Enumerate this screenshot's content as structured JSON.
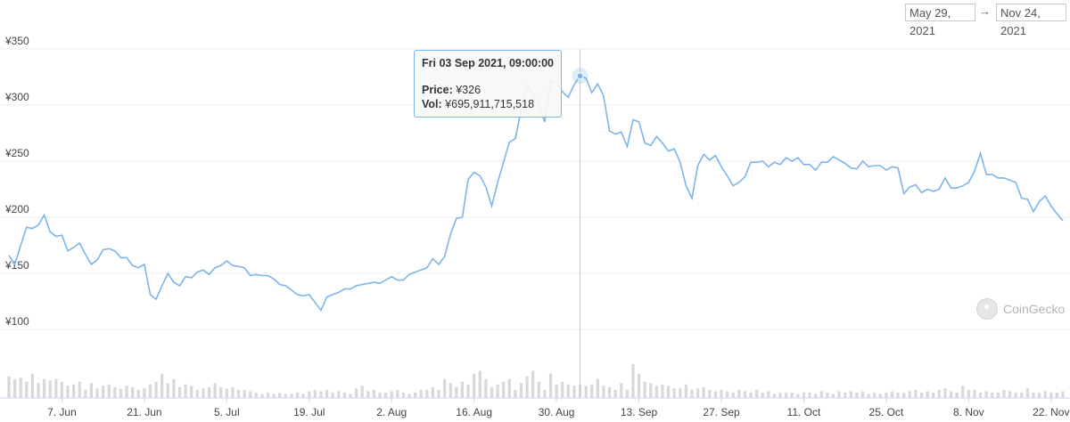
{
  "range": {
    "from": "May 29, 2021",
    "arrow": "→",
    "to": "Nov 24, 2021"
  },
  "tooltip": {
    "date": "Fri 03 Sep 2021, 09:00:00",
    "price_label": "Price:",
    "price_value": "¥326",
    "vol_label": "Vol:",
    "vol_value": "¥695,911,715,518"
  },
  "watermark": "CoinGecko",
  "colors": {
    "line": "#7cb5ec",
    "volume": "#d8d8d8",
    "grid": "#ececec",
    "crosshair": "#cccccc"
  },
  "chart_data": {
    "type": "line",
    "title": "",
    "xlabel": "",
    "ylabel": "",
    "x_range": [
      "2021-05-29",
      "2021-11-24"
    ],
    "ylim": [
      100,
      350
    ],
    "y_ticks": [
      {
        "value": 350,
        "label": "¥350"
      },
      {
        "value": 300,
        "label": "¥300"
      },
      {
        "value": 250,
        "label": "¥250"
      },
      {
        "value": 200,
        "label": "¥200"
      },
      {
        "value": 150,
        "label": "¥150"
      },
      {
        "value": 100,
        "label": "¥100"
      }
    ],
    "x_ticks": [
      {
        "date": "2021-06-07",
        "label": "7. Jun"
      },
      {
        "date": "2021-06-21",
        "label": "21. Jun"
      },
      {
        "date": "2021-07-05",
        "label": "5. Jul"
      },
      {
        "date": "2021-07-19",
        "label": "19. Jul"
      },
      {
        "date": "2021-08-02",
        "label": "2. Aug"
      },
      {
        "date": "2021-08-16",
        "label": "16. Aug"
      },
      {
        "date": "2021-08-30",
        "label": "30. Aug"
      },
      {
        "date": "2021-09-13",
        "label": "13. Sep"
      },
      {
        "date": "2021-09-27",
        "label": "27. Sep"
      },
      {
        "date": "2021-10-11",
        "label": "11. Oct"
      },
      {
        "date": "2021-10-25",
        "label": "25. Oct"
      },
      {
        "date": "2021-11-08",
        "label": "8. Nov"
      },
      {
        "date": "2021-11-22",
        "label": "22. Nov"
      }
    ],
    "grid": true,
    "legend": "none",
    "highlight": {
      "date": "2021-09-03",
      "value": 326
    },
    "series": [
      {
        "values": [
          [
            "2021-05-29",
            166
          ],
          [
            "2021-05-30",
            158
          ],
          [
            "2021-05-31",
            175
          ],
          [
            "2021-06-01",
            191
          ],
          [
            "2021-06-02",
            190
          ],
          [
            "2021-06-03",
            193
          ],
          [
            "2021-06-04",
            202
          ],
          [
            "2021-06-05",
            187
          ],
          [
            "2021-06-06",
            183
          ],
          [
            "2021-06-07",
            184
          ],
          [
            "2021-06-08",
            170
          ],
          [
            "2021-06-09",
            173
          ],
          [
            "2021-06-10",
            177
          ],
          [
            "2021-06-11",
            167
          ],
          [
            "2021-06-12",
            158
          ],
          [
            "2021-06-13",
            162
          ],
          [
            "2021-06-14",
            171
          ],
          [
            "2021-06-15",
            172
          ],
          [
            "2021-06-16",
            170
          ],
          [
            "2021-06-17",
            164
          ],
          [
            "2021-06-18",
            164
          ],
          [
            "2021-06-19",
            157
          ],
          [
            "2021-06-20",
            155
          ],
          [
            "2021-06-21",
            158
          ],
          [
            "2021-06-22",
            131
          ],
          [
            "2021-06-23",
            127
          ],
          [
            "2021-06-24",
            139
          ],
          [
            "2021-06-25",
            150
          ],
          [
            "2021-06-26",
            142
          ],
          [
            "2021-06-27",
            139
          ],
          [
            "2021-06-28",
            147
          ],
          [
            "2021-06-29",
            146
          ],
          [
            "2021-06-30",
            151
          ],
          [
            "2021-07-01",
            153
          ],
          [
            "2021-07-02",
            149
          ],
          [
            "2021-07-03",
            155
          ],
          [
            "2021-07-04",
            157
          ],
          [
            "2021-07-05",
            161
          ],
          [
            "2021-07-06",
            157
          ],
          [
            "2021-07-07",
            156
          ],
          [
            "2021-07-08",
            155
          ],
          [
            "2021-07-09",
            148
          ],
          [
            "2021-07-10",
            149
          ],
          [
            "2021-07-11",
            148
          ],
          [
            "2021-07-12",
            148
          ],
          [
            "2021-07-13",
            145
          ],
          [
            "2021-07-14",
            140
          ],
          [
            "2021-07-15",
            139
          ],
          [
            "2021-07-16",
            135
          ],
          [
            "2021-07-17",
            131
          ],
          [
            "2021-07-18",
            130
          ],
          [
            "2021-07-19",
            131
          ],
          [
            "2021-07-20",
            124
          ],
          [
            "2021-07-21",
            117
          ],
          [
            "2021-07-22",
            129
          ],
          [
            "2021-07-23",
            131
          ],
          [
            "2021-07-24",
            133
          ],
          [
            "2021-07-25",
            136
          ],
          [
            "2021-07-26",
            136
          ],
          [
            "2021-07-27",
            139
          ],
          [
            "2021-07-28",
            140
          ],
          [
            "2021-07-29",
            141
          ],
          [
            "2021-07-30",
            142
          ],
          [
            "2021-07-31",
            141
          ],
          [
            "2021-08-01",
            144
          ],
          [
            "2021-08-02",
            147
          ],
          [
            "2021-08-03",
            144
          ],
          [
            "2021-08-04",
            144
          ],
          [
            "2021-08-05",
            149
          ],
          [
            "2021-08-06",
            151
          ],
          [
            "2021-08-07",
            153
          ],
          [
            "2021-08-08",
            155
          ],
          [
            "2021-08-09",
            163
          ],
          [
            "2021-08-10",
            158
          ],
          [
            "2021-08-11",
            165
          ],
          [
            "2021-08-12",
            185
          ],
          [
            "2021-08-13",
            199
          ],
          [
            "2021-08-14",
            200
          ],
          [
            "2021-08-15",
            234
          ],
          [
            "2021-08-16",
            240
          ],
          [
            "2021-08-17",
            237
          ],
          [
            "2021-08-18",
            227
          ],
          [
            "2021-08-19",
            210
          ],
          [
            "2021-08-20",
            231
          ],
          [
            "2021-08-21",
            249
          ],
          [
            "2021-08-22",
            267
          ],
          [
            "2021-08-23",
            270
          ],
          [
            "2021-08-24",
            296
          ],
          [
            "2021-08-25",
            318
          ],
          [
            "2021-08-26",
            310
          ],
          [
            "2021-08-27",
            300
          ],
          [
            "2021-08-28",
            285
          ],
          [
            "2021-08-29",
            322
          ],
          [
            "2021-08-30",
            320
          ],
          [
            "2021-08-31",
            312
          ],
          [
            "2021-09-01",
            307
          ],
          [
            "2021-09-02",
            318
          ],
          [
            "2021-09-03",
            326
          ],
          [
            "2021-09-04",
            324
          ],
          [
            "2021-09-05",
            311
          ],
          [
            "2021-09-06",
            319
          ],
          [
            "2021-09-07",
            308
          ],
          [
            "2021-09-08",
            277
          ],
          [
            "2021-09-09",
            274
          ],
          [
            "2021-09-10",
            276
          ],
          [
            "2021-09-11",
            263
          ],
          [
            "2021-09-12",
            287
          ],
          [
            "2021-09-13",
            285
          ],
          [
            "2021-09-14",
            266
          ],
          [
            "2021-09-15",
            264
          ],
          [
            "2021-09-16",
            272
          ],
          [
            "2021-09-17",
            266
          ],
          [
            "2021-09-18",
            259
          ],
          [
            "2021-09-19",
            261
          ],
          [
            "2021-09-20",
            249
          ],
          [
            "2021-09-21",
            228
          ],
          [
            "2021-09-22",
            217
          ],
          [
            "2021-09-23",
            246
          ],
          [
            "2021-09-24",
            256
          ],
          [
            "2021-09-25",
            251
          ],
          [
            "2021-09-26",
            255
          ],
          [
            "2021-09-27",
            245
          ],
          [
            "2021-09-28",
            237
          ],
          [
            "2021-09-29",
            228
          ],
          [
            "2021-09-30",
            231
          ],
          [
            "2021-10-01",
            236
          ],
          [
            "2021-10-02",
            249
          ],
          [
            "2021-10-03",
            249
          ],
          [
            "2021-10-04",
            250
          ],
          [
            "2021-10-05",
            245
          ],
          [
            "2021-10-06",
            249
          ],
          [
            "2021-10-07",
            247
          ],
          [
            "2021-10-08",
            253
          ],
          [
            "2021-10-09",
            250
          ],
          [
            "2021-10-10",
            253
          ],
          [
            "2021-10-11",
            247
          ],
          [
            "2021-10-12",
            247
          ],
          [
            "2021-10-13",
            242
          ],
          [
            "2021-10-14",
            249
          ],
          [
            "2021-10-15",
            249
          ],
          [
            "2021-10-16",
            254
          ],
          [
            "2021-10-17",
            251
          ],
          [
            "2021-10-18",
            248
          ],
          [
            "2021-10-19",
            244
          ],
          [
            "2021-10-20",
            243
          ],
          [
            "2021-10-21",
            250
          ],
          [
            "2021-10-22",
            245
          ],
          [
            "2021-10-23",
            246
          ],
          [
            "2021-10-24",
            246
          ],
          [
            "2021-10-25",
            242
          ],
          [
            "2021-10-26",
            245
          ],
          [
            "2021-10-27",
            244
          ],
          [
            "2021-10-28",
            221
          ],
          [
            "2021-10-29",
            227
          ],
          [
            "2021-10-30",
            229
          ],
          [
            "2021-10-31",
            222
          ],
          [
            "2021-11-01",
            225
          ],
          [
            "2021-11-02",
            223
          ],
          [
            "2021-11-03",
            225
          ],
          [
            "2021-11-04",
            235
          ],
          [
            "2021-11-05",
            226
          ],
          [
            "2021-11-06",
            226
          ],
          [
            "2021-11-07",
            228
          ],
          [
            "2021-11-08",
            231
          ],
          [
            "2021-11-09",
            241
          ],
          [
            "2021-11-10",
            257
          ],
          [
            "2021-11-11",
            238
          ],
          [
            "2021-11-12",
            238
          ],
          [
            "2021-11-13",
            235
          ],
          [
            "2021-11-14",
            235
          ],
          [
            "2021-11-15",
            233
          ],
          [
            "2021-11-16",
            231
          ],
          [
            "2021-11-17",
            217
          ],
          [
            "2021-11-18",
            216
          ],
          [
            "2021-11-19",
            205
          ],
          [
            "2021-11-20",
            214
          ],
          [
            "2021-11-21",
            219
          ],
          [
            "2021-11-22",
            210
          ],
          [
            "2021-11-23",
            203
          ],
          [
            "2021-11-24",
            197
          ]
        ]
      }
    ],
    "volume_relative": [
      0.8,
      0.7,
      0.75,
      0.6,
      0.9,
      0.55,
      0.7,
      0.65,
      0.7,
      0.6,
      0.45,
      0.5,
      0.6,
      0.3,
      0.55,
      0.35,
      0.45,
      0.5,
      0.4,
      0.35,
      0.45,
      0.4,
      0.3,
      0.35,
      0.5,
      0.6,
      0.9,
      0.55,
      0.7,
      0.4,
      0.5,
      0.45,
      0.3,
      0.35,
      0.4,
      0.55,
      0.4,
      0.35,
      0.4,
      0.3,
      0.3,
      0.25,
      0.2,
      0.15,
      0.2,
      0.15,
      0.18,
      0.15,
      0.15,
      0.2,
      0.15,
      0.25,
      0.3,
      0.25,
      0.3,
      0.2,
      0.25,
      0.2,
      0.15,
      0.35,
      0.45,
      0.25,
      0.3,
      0.2,
      0.2,
      0.25,
      0.3,
      0.2,
      0.15,
      0.2,
      0.3,
      0.3,
      0.4,
      0.3,
      0.7,
      0.55,
      0.4,
      0.6,
      0.5,
      0.9,
      1.0,
      0.7,
      0.4,
      0.5,
      0.6,
      0.7,
      0.3,
      0.55,
      0.8,
      1.0,
      0.6,
      0.3,
      0.9,
      0.5,
      0.6,
      0.5,
      0.45,
      0.5,
      0.45,
      0.5,
      0.7,
      0.45,
      0.4,
      0.3,
      0.55,
      0.3,
      1.25,
      0.9,
      0.6,
      0.55,
      0.45,
      0.5,
      0.45,
      0.35,
      0.35,
      0.5,
      0.3,
      0.35,
      0.4,
      0.3,
      0.25,
      0.3,
      0.25,
      0.2,
      0.3,
      0.25,
      0.2,
      0.3,
      0.2,
      0.25,
      0.15,
      0.2,
      0.2,
      0.2,
      0.15,
      0.2,
      0.2,
      0.15,
      0.25,
      0.2,
      0.15,
      0.25,
      0.2,
      0.25,
      0.2,
      0.25,
      0.15,
      0.2,
      0.15,
      0.2,
      0.25,
      0.2,
      0.2,
      0.25,
      0.3,
      0.2,
      0.25,
      0.2,
      0.3,
      0.35,
      0.25,
      0.2,
      0.45,
      0.3,
      0.3,
      0.2,
      0.25,
      0.2,
      0.2,
      0.3,
      0.25,
      0.2,
      0.2,
      0.35,
      0.2,
      0.2,
      0.25,
      0.2,
      0.2,
      0.25
    ]
  }
}
